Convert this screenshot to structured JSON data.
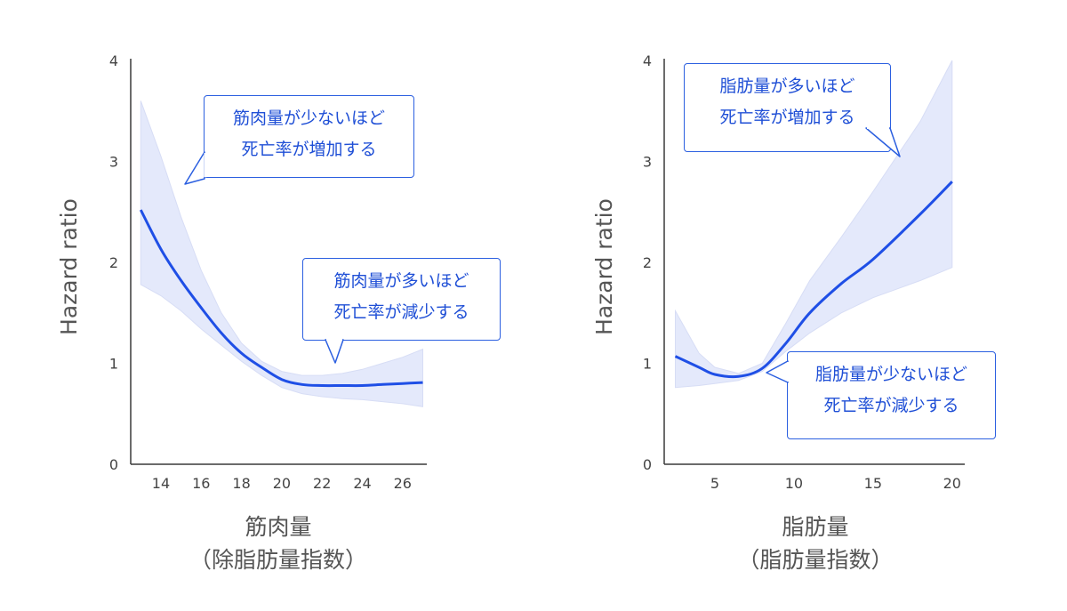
{
  "chart_data": [
    {
      "type": "line",
      "ylabel": "Hazard ratio",
      "xlabel": "筋肉量",
      "xlabel_sub": "（除脂肪量指数）",
      "xlim": [
        12.5,
        27.2
      ],
      "ylim": [
        0,
        4
      ],
      "xticks": [
        "14",
        "16",
        "18",
        "20",
        "22",
        "24",
        "26"
      ],
      "yticks": [
        "0",
        "1",
        "2",
        "3",
        "4"
      ],
      "line_color": "#1f4fe6",
      "band_color": "#e4e9fb",
      "series": [
        {
          "x": [
            13,
            14,
            15,
            16,
            17,
            18,
            19,
            20,
            21,
            22,
            23,
            24,
            25,
            26,
            27
          ],
          "y": [
            2.52,
            2.13,
            1.82,
            1.55,
            1.3,
            1.1,
            0.96,
            0.84,
            0.79,
            0.78,
            0.78,
            0.78,
            0.79,
            0.8,
            0.81
          ],
          "lower": [
            1.78,
            1.67,
            1.52,
            1.34,
            1.18,
            1.02,
            0.88,
            0.76,
            0.7,
            0.67,
            0.65,
            0.64,
            0.62,
            0.6,
            0.57
          ],
          "upper": [
            3.6,
            3.05,
            2.45,
            1.92,
            1.5,
            1.2,
            1.02,
            0.92,
            0.88,
            0.88,
            0.9,
            0.94,
            1.0,
            1.06,
            1.14
          ]
        }
      ],
      "annotations": [
        {
          "line1": "筋肉量が少ないほど",
          "line2": "死亡率が増加する"
        },
        {
          "line1": "筋肉量が多いほど",
          "line2": "死亡率が減少する"
        }
      ]
    },
    {
      "type": "line",
      "ylabel": "Hazard ratio",
      "xlabel": "脂肪量",
      "xlabel_sub": "（脂肪量指数）",
      "xlim": [
        1.8,
        20.8
      ],
      "ylim": [
        0,
        4
      ],
      "xticks": [
        "5",
        "10",
        "15",
        "20"
      ],
      "yticks": [
        "0",
        "1",
        "2",
        "3",
        "4"
      ],
      "line_color": "#1f4fe6",
      "band_color": "#e4e9fb",
      "series": [
        {
          "x": [
            2.5,
            4,
            5,
            6.5,
            8,
            9.5,
            11,
            13,
            15,
            18,
            20
          ],
          "y": [
            1.07,
            0.96,
            0.89,
            0.87,
            0.95,
            1.2,
            1.5,
            1.79,
            2.03,
            2.48,
            2.8
          ],
          "lower": [
            0.76,
            0.78,
            0.8,
            0.83,
            0.92,
            1.12,
            1.3,
            1.5,
            1.65,
            1.82,
            1.95
          ],
          "upper": [
            1.52,
            1.1,
            0.96,
            0.9,
            1.0,
            1.4,
            1.82,
            2.25,
            2.7,
            3.4,
            4.0
          ]
        }
      ],
      "annotations": [
        {
          "line1": "脂肪量が多いほど",
          "line2": "死亡率が増加する"
        },
        {
          "line1": "脂肪量が少ないほど",
          "line2": "死亡率が減少する"
        }
      ]
    }
  ]
}
